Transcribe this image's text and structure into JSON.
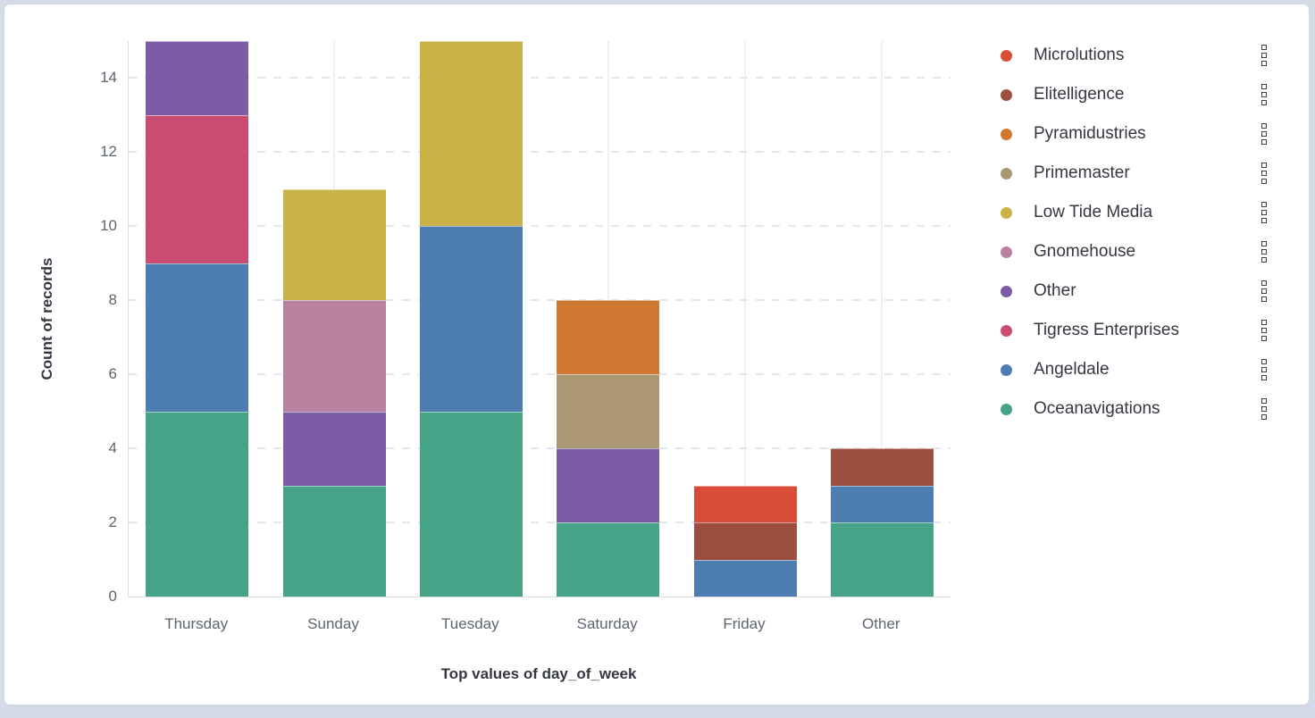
{
  "chart_data": {
    "type": "bar",
    "stacked": true,
    "orientation": "vertical",
    "xlabel": "Top values of day_of_week",
    "ylabel": "Count of records",
    "categories": [
      "Thursday",
      "Sunday",
      "Tuesday",
      "Saturday",
      "Friday",
      "Other"
    ],
    "series": [
      {
        "name": "Microlutions",
        "color": "#D94D38",
        "values": [
          0,
          0,
          0,
          0,
          1,
          0
        ]
      },
      {
        "name": "Elitelligence",
        "color": "#9C4F41",
        "values": [
          0,
          0,
          0,
          0,
          1,
          1
        ]
      },
      {
        "name": "Pyramidustries",
        "color": "#CE7832",
        "values": [
          0,
          0,
          0,
          2,
          0,
          0
        ]
      },
      {
        "name": "Primemaster",
        "color": "#A99872",
        "values": [
          0,
          0,
          0,
          2,
          0,
          0
        ]
      },
      {
        "name": "Low Tide Media",
        "color": "#CBB248",
        "values": [
          0,
          3,
          5,
          0,
          0,
          0
        ]
      },
      {
        "name": "Gnomehouse",
        "color": "#B9819F",
        "values": [
          0,
          3,
          0,
          0,
          0,
          0
        ]
      },
      {
        "name": "Other",
        "color": "#7D5CA6",
        "values": [
          2,
          2,
          0,
          2,
          0,
          0
        ]
      },
      {
        "name": "Tigress Enterprises",
        "color": "#CA4C73",
        "values": [
          4,
          0,
          0,
          0,
          0,
          0
        ]
      },
      {
        "name": "Angeldale",
        "color": "#4E7DB1",
        "values": [
          4,
          0,
          5,
          0,
          1,
          1
        ]
      },
      {
        "name": "Oceanavigations",
        "color": "#46A388",
        "values": [
          5,
          3,
          5,
          2,
          0,
          2
        ]
      }
    ],
    "stack_order_note": "bottom of each stack is last series in list (Oceanavigations), top is first (Microlutions)",
    "category_totals": [
      15,
      11,
      15,
      8,
      3,
      4
    ],
    "ylim": [
      0,
      15
    ],
    "yticks": [
      0,
      2,
      4,
      6,
      8,
      10,
      12,
      14
    ],
    "grid": {
      "horizontal": "dashed",
      "vertical": "solid-category-centers"
    },
    "legend_position": "right"
  },
  "legend": {
    "action_icon": "boxes-vertical-icon"
  }
}
